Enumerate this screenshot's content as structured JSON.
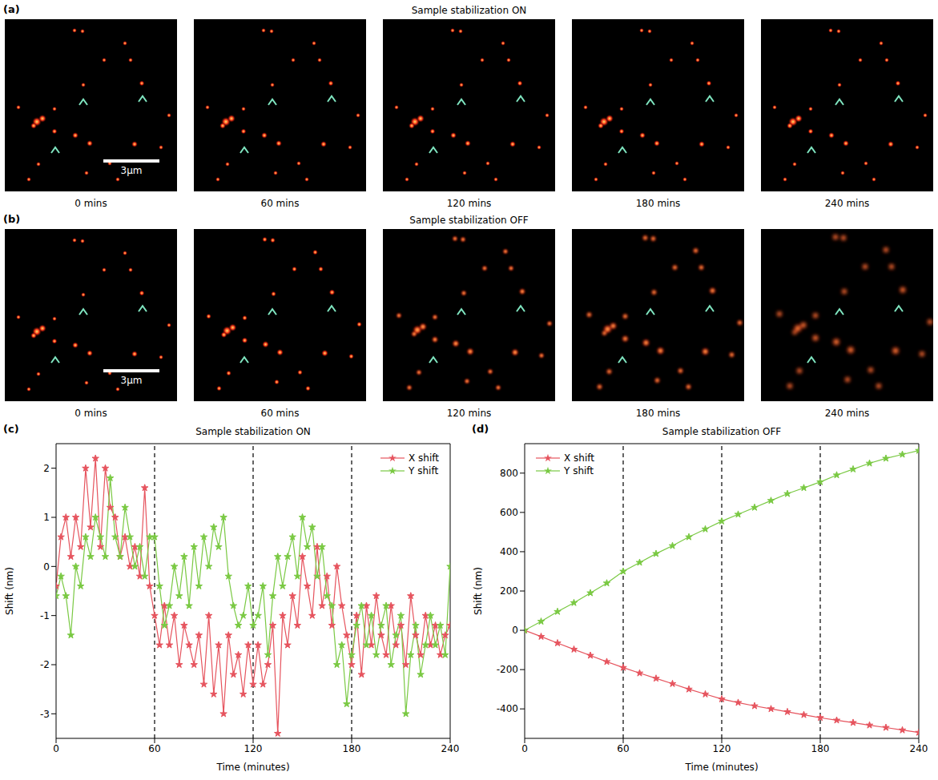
{
  "panels": [
    {
      "letter": "(a)",
      "title": "Sample stabilization ON",
      "timepoints": [
        "0 mins",
        "60 mins",
        "120 mins",
        "180 mins",
        "240 mins"
      ],
      "scale_bar": "3μm"
    },
    {
      "letter": "(b)",
      "title": "Sample stabilization OFF",
      "timepoints": [
        "0 mins",
        "60 mins",
        "120 mins",
        "180 mins",
        "240 mins"
      ],
      "scale_bar": "3μm"
    }
  ],
  "chart_data": [
    {
      "letter": "(c)",
      "type": "line",
      "title": "Sample stabilization ON",
      "x_label": "Time (minutes)",
      "y_label": "Shift (nm)",
      "x": [
        0,
        3,
        6,
        9,
        12,
        15,
        18,
        21,
        24,
        27,
        30,
        33,
        36,
        39,
        42,
        45,
        48,
        51,
        54,
        57,
        60,
        63,
        66,
        69,
        72,
        75,
        78,
        81,
        84,
        87,
        90,
        93,
        96,
        99,
        102,
        105,
        108,
        111,
        114,
        117,
        120,
        123,
        126,
        129,
        132,
        135,
        138,
        141,
        144,
        147,
        150,
        153,
        156,
        159,
        162,
        165,
        168,
        171,
        174,
        177,
        180,
        183,
        186,
        189,
        192,
        195,
        198,
        201,
        204,
        207,
        210,
        213,
        216,
        219,
        222,
        225,
        228,
        231,
        234,
        237,
        240
      ],
      "series": [
        {
          "name": "X shift",
          "color": "#e6545e",
          "marker": "star",
          "values": [
            -0.4,
            0.6,
            1.0,
            0.2,
            1.0,
            0.4,
            2.0,
            0.8,
            2.2,
            0.4,
            2.0,
            1.2,
            1.0,
            0.2,
            0.6,
            0.0,
            0.4,
            -0.2,
            1.6,
            -0.4,
            -1.0,
            -1.6,
            -0.8,
            -1.6,
            -1.0,
            -2.0,
            -1.2,
            -1.6,
            -2.0,
            -1.4,
            -2.4,
            -1.0,
            -2.6,
            -1.6,
            -3.0,
            -1.4,
            -2.2,
            -1.8,
            -2.6,
            -1.6,
            -2.4,
            -1.6,
            -2.4,
            -2.0,
            -1.2,
            -3.4,
            -1.0,
            -1.6,
            -0.6,
            -1.2,
            0.2,
            -0.4,
            -1.0,
            0.4,
            -0.8,
            -0.2,
            -1.2,
            0.0,
            -0.8,
            -1.4,
            -2.0,
            -1.0,
            -2.2,
            -0.8,
            -1.6,
            -0.6,
            -1.4,
            -1.8,
            -0.8,
            -1.6,
            -1.2,
            -2.0,
            -0.6,
            -1.4,
            -1.8,
            -1.0,
            -1.6,
            -1.2,
            -1.8,
            -1.4,
            -1.2
          ]
        },
        {
          "name": "Y shift",
          "color": "#7ac943",
          "marker": "star",
          "values": [
            -0.6,
            -0.2,
            -0.6,
            -1.4,
            0.0,
            -0.4,
            0.6,
            0.2,
            1.0,
            0.6,
            0.2,
            1.8,
            0.6,
            0.2,
            1.2,
            0.6,
            0.0,
            0.4,
            -0.2,
            0.6,
            0.6,
            -0.4,
            -1.2,
            -0.8,
            0.0,
            -0.6,
            0.2,
            -0.8,
            0.4,
            -0.4,
            0.6,
            0.0,
            0.8,
            0.4,
            1.0,
            -0.2,
            -0.8,
            -1.2,
            -1.0,
            -0.4,
            -1.2,
            -1.0,
            -0.4,
            -1.8,
            -0.6,
            0.2,
            -0.4,
            0.2,
            0.6,
            -0.2,
            1.0,
            0.4,
            0.8,
            -0.2,
            0.4,
            -0.6,
            -0.8,
            -2.0,
            -1.6,
            -2.8,
            -1.8,
            -1.2,
            -0.8,
            -1.6,
            -1.0,
            -1.8,
            -1.2,
            -0.8,
            -2.0,
            -1.4,
            -1.0,
            -3.0,
            -1.8,
            -1.2,
            -2.2,
            -1.6,
            -1.0,
            -1.6,
            -1.2,
            -1.8,
            0.0
          ]
        }
      ],
      "xlim": [
        0,
        240
      ],
      "xticks": [
        0,
        60,
        120,
        180,
        240
      ],
      "ylim": [
        -3.5,
        2.5
      ],
      "yticks": [
        -3,
        -2,
        -1,
        0,
        1,
        2
      ],
      "vlines": [
        60,
        120,
        180
      ],
      "legend": "upper right"
    },
    {
      "letter": "(d)",
      "type": "line",
      "title": "Sample stabilization OFF",
      "x_label": "Time (minutes)",
      "y_label": "Shift (nm)",
      "x": [
        0,
        10,
        20,
        30,
        40,
        50,
        60,
        70,
        80,
        90,
        100,
        110,
        120,
        130,
        140,
        150,
        160,
        170,
        180,
        190,
        200,
        210,
        220,
        230,
        240
      ],
      "series": [
        {
          "name": "X shift",
          "color": "#e6545e",
          "marker": "star",
          "values": [
            0,
            -32,
            -65,
            -97,
            -128,
            -160,
            -190,
            -218,
            -245,
            -272,
            -300,
            -325,
            -350,
            -368,
            -385,
            -400,
            -415,
            -430,
            -445,
            -458,
            -470,
            -483,
            -495,
            -508,
            -520
          ]
        },
        {
          "name": "Y shift",
          "color": "#7ac943",
          "marker": "star",
          "values": [
            0,
            45,
            95,
            140,
            190,
            240,
            300,
            345,
            390,
            430,
            475,
            515,
            555,
            590,
            625,
            660,
            695,
            725,
            755,
            790,
            820,
            850,
            875,
            895,
            915
          ]
        }
      ],
      "xlim": [
        0,
        240
      ],
      "xticks": [
        0,
        60,
        120,
        180,
        240
      ],
      "ylim": [
        -550,
        950
      ],
      "yticks": [
        -400,
        -200,
        0,
        200,
        400,
        600,
        800
      ],
      "vlines": [
        60,
        120,
        180
      ],
      "legend": "upper left"
    }
  ]
}
